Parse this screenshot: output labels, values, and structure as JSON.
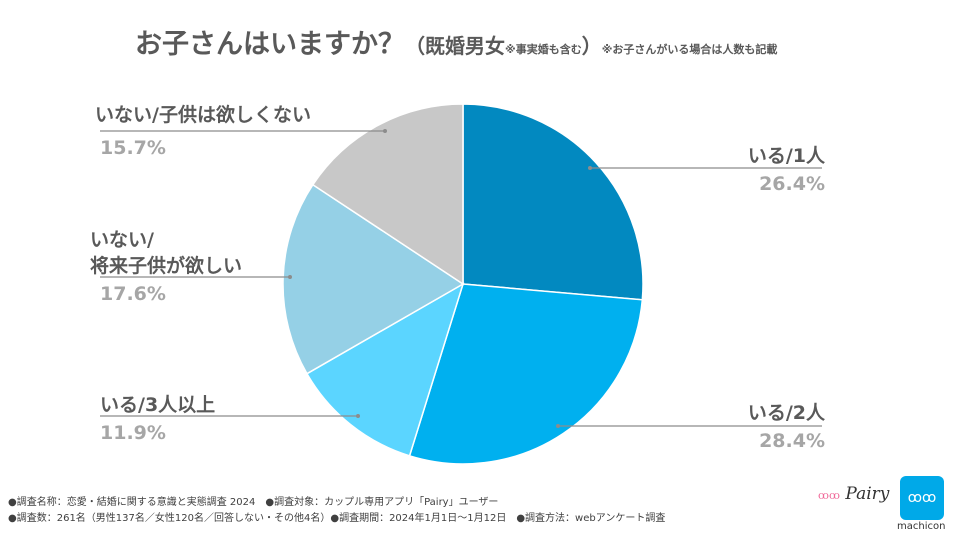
{
  "title": {
    "main": "お子さんはいますか？",
    "paren_open": "（既婚男女",
    "note1": "※事実婚も含む",
    "paren_close": "）",
    "note2": "※お子さんがいる場合は人数も記載"
  },
  "chart_data": {
    "type": "pie",
    "title": "お子さんはいますか？",
    "start": "top",
    "direction": "clockwise",
    "slices": [
      {
        "label": "いる/1人",
        "value": 26.4,
        "pct": "26.4%",
        "color": "#0289c0"
      },
      {
        "label": "いる/2人",
        "value": 28.4,
        "pct": "28.4%",
        "color": "#00b0ef"
      },
      {
        "label": "いる/3人以上",
        "value": 11.9,
        "pct": "11.9%",
        "color": "#5bd5ff"
      },
      {
        "label_line1": "いない/",
        "label_line2": "将来子供が欲しい",
        "label": "いない/将来子供が欲しい",
        "value": 17.6,
        "pct": "17.6%",
        "color": "#95d0e6"
      },
      {
        "label": "いない/子供は欲しくない",
        "value": 15.7,
        "pct": "15.7%",
        "color": "#c8c8c8"
      }
    ]
  },
  "footer": {
    "line1": "●調査名称：恋愛・結婚に関する意識と実態調査 2024　●調査対象：カップル専用アプリ「Pairy」ユーザー",
    "line2": "●調査数：261名（男性137名／女性120名／回答しない・その他4名）●調査期間：2024年1月1日～1月12日　●調査方法：webアンケート調査"
  },
  "logos": {
    "pairy": "Pairy",
    "machicon": "machicon"
  }
}
